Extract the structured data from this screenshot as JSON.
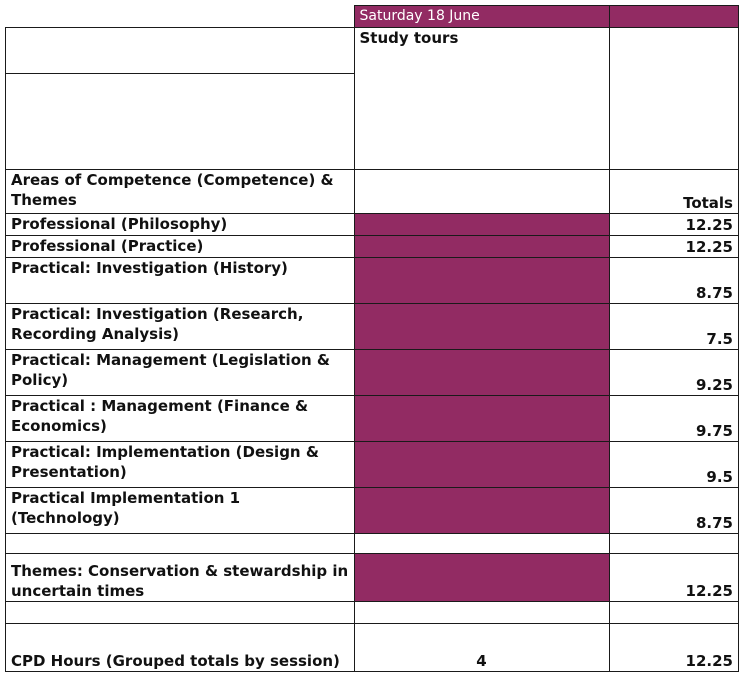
{
  "header": {
    "date": "Saturday 18 June",
    "session": "Study tours"
  },
  "labels": {
    "areas": "Areas of Competence (Competence) & Themes",
    "totals": "Totals"
  },
  "rows": [
    {
      "label": "Professional (Philosophy)",
      "total": "12.25"
    },
    {
      "label": "Professional (Practice)",
      "total": "12.25"
    },
    {
      "label": "Practical: Investigation (History)",
      "total": "8.75"
    },
    {
      "label": "Practical: Investigation (Research, Recording Analysis)",
      "total": "7.5"
    },
    {
      "label": "Practical: Management (Legislation & Policy)",
      "total": "9.25"
    },
    {
      "label": "Practical : Management (Finance & Economics)",
      "total": "9.75"
    },
    {
      "label": "Practical: Implementation (Design & Presentation)",
      "total": "9.5"
    },
    {
      "label": "Practical Implementation 1 (Technology)",
      "total": "8.75"
    }
  ],
  "themes": {
    "label": "Themes: Conservation & stewardship in uncertain times",
    "total": "12.25"
  },
  "cpd": {
    "label": "CPD Hours (Grouped totals by session)",
    "session_hours": "4",
    "total": "12.25"
  },
  "colors": {
    "highlight": "#922b63"
  }
}
